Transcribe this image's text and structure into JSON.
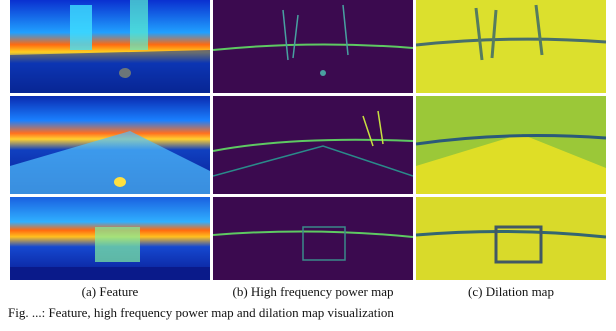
{
  "figure": {
    "columns": [
      {
        "caption": "(a) Feature",
        "style": "jet"
      },
      {
        "caption": "(b) High frequency power map",
        "style": "viridis-dark"
      },
      {
        "caption": "(c) Dilation map",
        "style": "viridis-bright"
      }
    ],
    "rows": 3,
    "colors": {
      "jet_dark": "#0a1a8a",
      "jet_mid": "#1c5cff",
      "jet_hot": "#ff5a10",
      "viridis_dark": "#3b0a4f",
      "viridis_line": "#5ec962",
      "viridis_bright": "#f5e520",
      "viridis_green": "#7fbd3a"
    }
  },
  "caption_text": "Fig. ...: Feature, high frequency power map and dilation map visualization"
}
